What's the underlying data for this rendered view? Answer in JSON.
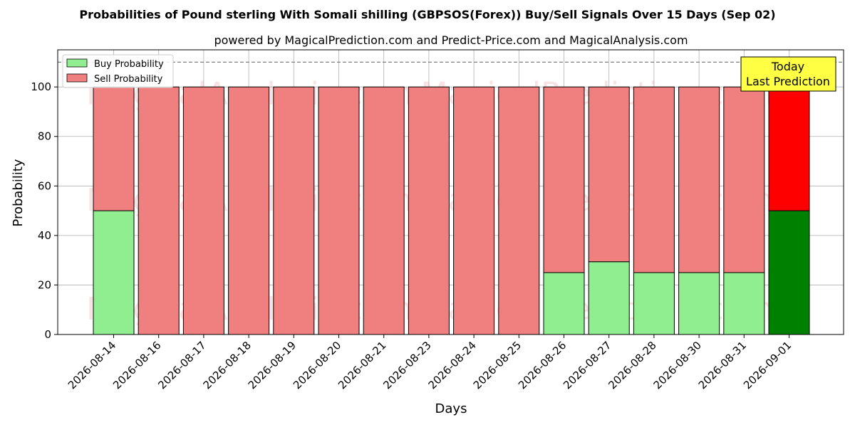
{
  "chart_data": {
    "type": "bar",
    "title": "Probabilities of Pound sterling With Somali shilling (GBPSOS(Forex)) Buy/Sell Signals Over 15 Days (Sep 02)",
    "subtitle": "powered by MagicalPrediction.com and Predict-Price.com and MagicalAnalysis.com",
    "xlabel": "Days",
    "ylabel": "Probability",
    "ylim": [
      0,
      115
    ],
    "yticks": [
      0,
      20,
      40,
      60,
      80,
      100
    ],
    "grid": true,
    "stacked": true,
    "legend_position": "top-left",
    "reference_line": 110,
    "categories": [
      "2026-08-14",
      "2026-08-16",
      "2026-08-17",
      "2026-08-18",
      "2026-08-19",
      "2026-08-20",
      "2026-08-21",
      "2026-08-23",
      "2026-08-24",
      "2026-08-25",
      "2026-08-26",
      "2026-08-27",
      "2026-08-28",
      "2026-08-30",
      "2026-08-31",
      "2026-09-01"
    ],
    "series": [
      {
        "name": "Buy Probability",
        "color": "#90ee90",
        "highlight_color": "#008000",
        "values": [
          50,
          0,
          0,
          0,
          0,
          0,
          0,
          0,
          0,
          0,
          25,
          29.4,
          25,
          25,
          25,
          50
        ]
      },
      {
        "name": "Sell Probability",
        "color": "#f08080",
        "highlight_color": "#ff0000",
        "values": [
          50,
          100,
          100,
          100,
          100,
          100,
          100,
          100,
          100,
          100,
          75,
          70.6,
          75,
          75,
          75,
          50
        ]
      }
    ],
    "highlight_index": 15,
    "annotation": {
      "line1": "Today",
      "line2": "Last Prediction",
      "color": "#ffff44"
    },
    "watermarks": [
      "MagicalAnalysis.com",
      "MagicalPrediction.com"
    ]
  }
}
